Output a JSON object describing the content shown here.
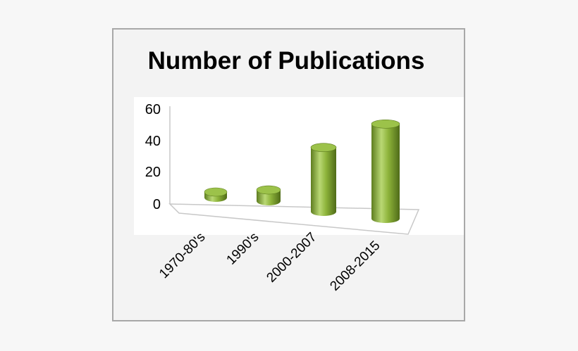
{
  "chart_data": {
    "type": "bar",
    "title": "Number of Publications",
    "categories": [
      "1970-80's",
      "1990's",
      "2000-2007",
      "2008-2015"
    ],
    "values": [
      3,
      7,
      40,
      59
    ],
    "y_ticks": [
      "0",
      "20",
      "40",
      "60"
    ],
    "ylim": [
      0,
      60
    ],
    "grid": false,
    "legend": "none",
    "style": "3d-cylinder",
    "colors": {
      "bar": "#8db33a",
      "bar_dark": "#5e7d1f",
      "bar_light": "#b9d874",
      "top": "#9cc24a"
    }
  }
}
